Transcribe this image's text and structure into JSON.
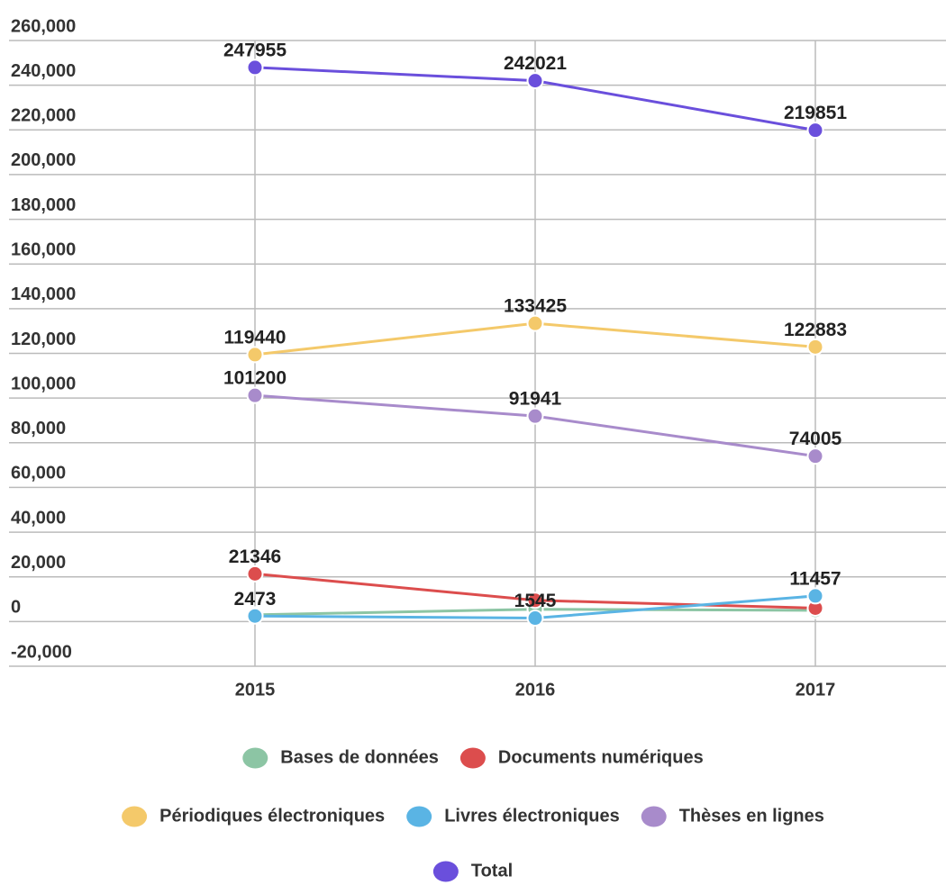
{
  "chart_data": {
    "type": "line",
    "categories": [
      "2015",
      "2016",
      "2017"
    ],
    "series": [
      {
        "name": "Bases de données",
        "color": "#8cc5a4",
        "values": [
          3000,
          5500,
          5000
        ],
        "value_labels": [
          null,
          null,
          null
        ]
      },
      {
        "name": "Documents numériques",
        "color": "#dc4d4d",
        "values": [
          21346,
          9500,
          6000
        ],
        "value_labels": [
          "21346",
          null,
          null
        ]
      },
      {
        "name": "Périodiques électroniques",
        "color": "#f4c96a",
        "values": [
          119440,
          133425,
          122883
        ],
        "value_labels": [
          "119440",
          "133425",
          "122883"
        ]
      },
      {
        "name": "Livres électroniques",
        "color": "#5ab4e4",
        "values": [
          2473,
          1545,
          11457
        ],
        "value_labels": [
          "2473",
          "1545",
          "11457"
        ]
      },
      {
        "name": "Thèses en lignes",
        "color": "#a88bcb",
        "values": [
          101200,
          91941,
          74005
        ],
        "value_labels": [
          "101200",
          "91941",
          "74005"
        ]
      },
      {
        "name": "Total",
        "color": "#6a4fdc",
        "values": [
          247955,
          242021,
          219851
        ],
        "value_labels": [
          "247955",
          "242021",
          "219851"
        ]
      }
    ],
    "ylim": [
      -20000,
      260000
    ],
    "yticks": [
      {
        "value": -20000,
        "label": "-20,000"
      },
      0,
      {
        "value": 20000,
        "label": "20,000"
      },
      {
        "value": 40000,
        "label": "40,000"
      },
      {
        "value": 60000,
        "label": "60,000"
      },
      {
        "value": 80000,
        "label": "80,000"
      },
      {
        "value": 100000,
        "label": "100,000"
      },
      {
        "value": 120000,
        "label": "120,000"
      },
      {
        "value": 140000,
        "label": "140,000"
      },
      {
        "value": 160000,
        "label": "160,000"
      },
      {
        "value": 180000,
        "label": "180,000"
      },
      {
        "value": 200000,
        "label": "200,000"
      },
      {
        "value": 220000,
        "label": "220,000"
      },
      {
        "value": 240000,
        "label": "240,000"
      },
      {
        "value": 260000,
        "label": "260,000"
      }
    ],
    "grid": true,
    "legend": "bottom"
  }
}
